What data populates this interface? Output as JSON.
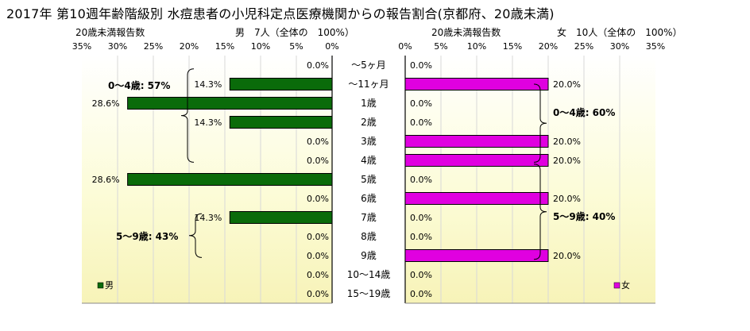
{
  "title": "2017年 第10週年齢階級別 水痘患者の小児科定点医療機関からの報告割合(京都府、20歳未満)",
  "chart_data": {
    "type": "bar",
    "categories": [
      "～5ヶ月",
      "～11ヶ月",
      "1歳",
      "2歳",
      "3歳",
      "4歳",
      "5歳",
      "6歳",
      "7歳",
      "8歳",
      "9歳",
      "10～14歳",
      "15～19歳"
    ],
    "x_ticks": [
      "0%",
      "5%",
      "10%",
      "15%",
      "20%",
      "25%",
      "30%",
      "35%"
    ],
    "xlim": [
      0,
      35
    ],
    "series": [
      {
        "name": "男",
        "header_label": "20歳未満報告数",
        "header_total": "男　7人（全体の　100%）",
        "color": "#0a6b0a",
        "values": [
          0.0,
          14.3,
          28.6,
          14.3,
          0.0,
          0.0,
          28.6,
          0.0,
          14.3,
          0.0,
          0.0,
          0.0,
          0.0
        ],
        "value_labels": [
          "0.0%",
          "14.3%",
          "28.6%",
          "14.3%",
          "0.0%",
          "0.0%",
          "28.6%",
          "0.0%",
          "14.3%",
          "0.0%",
          "0.0%",
          "0.0%",
          "0.0%"
        ],
        "annotations": [
          "0～4歳: 57%",
          "5～9歳: 43%"
        ]
      },
      {
        "name": "女",
        "header_label": "20歳未満報告数",
        "header_total": "女　10人（全体の　100%）",
        "color": "#e000e0",
        "values": [
          0.0,
          20.0,
          0.0,
          0.0,
          20.0,
          20.0,
          0.0,
          20.0,
          0.0,
          0.0,
          20.0,
          0.0,
          0.0
        ],
        "value_labels": [
          "0.0%",
          "20.0%",
          "0.0%",
          "0.0%",
          "20.0%",
          "20.0%",
          "0.0%",
          "20.0%",
          "0.0%",
          "0.0%",
          "20.0%",
          "0.0%",
          "0.0%"
        ],
        "annotations": [
          "0～4歳: 60%",
          "5～9歳: 40%"
        ]
      }
    ],
    "legend_placement": "bottom-left / bottom-right",
    "grid": true
  }
}
